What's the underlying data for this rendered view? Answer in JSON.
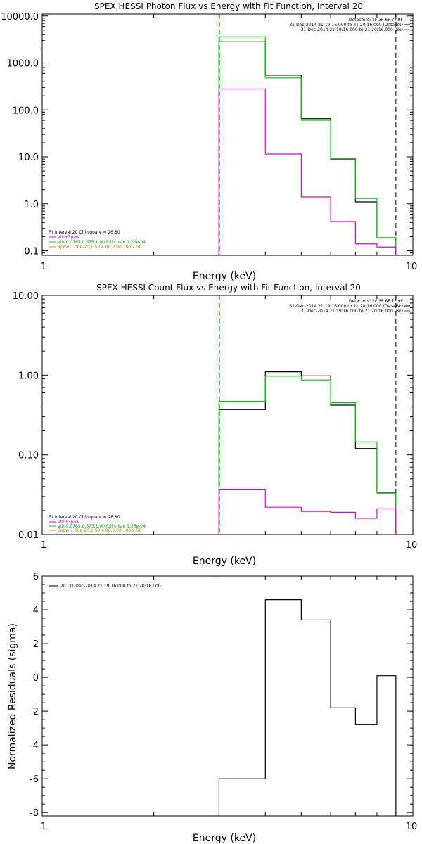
{
  "chart_data": [
    {
      "type": "line",
      "title": "SPEX HESSI Photon Flux vs Energy with Fit Function, Interval 20",
      "xlabel": "Energy (keV)",
      "ylabel": "",
      "x_scale": "log",
      "y_scale": "log",
      "xlim": [
        1,
        10
      ],
      "ylim": [
        0.08,
        11000
      ],
      "x_ticks": [
        {
          "v": 1,
          "label": "1"
        },
        {
          "v": 10,
          "label": "10"
        }
      ],
      "y_ticks": [
        {
          "v": 10000,
          "label": "10000.0"
        },
        {
          "v": 1000,
          "label": "1000.0"
        },
        {
          "v": 100,
          "label": "100.0"
        },
        {
          "v": 10,
          "label": "10.0"
        },
        {
          "v": 1,
          "label": "1.0"
        },
        {
          "v": 0.1,
          "label": "0.1"
        }
      ],
      "edges": [
        3.0,
        4.0,
        5.0,
        6.0,
        7.0,
        8.0,
        9.0
      ],
      "series": [
        {
          "key": "black",
          "color": "#000000",
          "values": [
            2900,
            550,
            65,
            9.0,
            1.1,
            0.19
          ]
        },
        {
          "key": "green",
          "color": "#00cc00",
          "values": [
            3600,
            480,
            60,
            9.2,
            1.3,
            0.19
          ]
        },
        {
          "key": "magenta",
          "color": "#dd00dd",
          "values": [
            280,
            11.5,
            1.4,
            0.42,
            0.14,
            0.12
          ]
        }
      ],
      "vlines": [
        {
          "x": 3.0,
          "style": "dotted",
          "color": "#000000"
        },
        {
          "x": 3.0,
          "style": "dashed",
          "color": "#00cc00"
        },
        {
          "x": 9.0,
          "style": "dashed",
          "color": "#000000"
        }
      ],
      "legend_top_right": [
        {
          "text": "Detectors: 1F 3F 6F 7F 9F",
          "color": "#000000"
        },
        {
          "text": "31-Dec-2014 21:19:16.000 to 21:20:16.000 (Data-Bk)",
          "color": "#000000",
          "swatch": "#000000"
        },
        {
          "text": "31-Dec-2014 21:19:16.000 to 21:20:16.000 (Bk)",
          "color": "#000000",
          "swatch": "#dd00dd"
        }
      ],
      "legend_bottom_left": [
        {
          "text": "Fit Interval 20   Chi-square = 26.80",
          "color": "#000000"
        },
        {
          "text": "vth+3pow",
          "color": "#dd00dd",
          "swatch": "#dd00dd"
        },
        {
          "text": "vth 0.0765,0.675,1.00  full chian 1.26e-04",
          "color": "#00cc00",
          "swatch": "#00cc00"
        },
        {
          "text": "3pow 1.00e-20,1.50,4.00,2.00,100,2.50",
          "color": "#cc9900",
          "swatch": "#cc9900"
        }
      ]
    },
    {
      "type": "line",
      "title": "SPEX HESSI Count Flux vs Energy with Fit Function, Interval 20",
      "xlabel": "Energy (keV)",
      "ylabel": "",
      "x_scale": "log",
      "y_scale": "log",
      "xlim": [
        1,
        10
      ],
      "ylim": [
        0.01,
        10
      ],
      "x_ticks": [
        {
          "v": 1,
          "label": "1"
        },
        {
          "v": 10,
          "label": "10"
        }
      ],
      "y_ticks": [
        {
          "v": 10,
          "label": "10.00"
        },
        {
          "v": 1,
          "label": "1.00"
        },
        {
          "v": 0.1,
          "label": "0.10"
        },
        {
          "v": 0.01,
          "label": "0.01"
        }
      ],
      "edges": [
        3.0,
        4.0,
        5.0,
        6.0,
        7.0,
        8.0,
        9.0
      ],
      "series": [
        {
          "key": "black",
          "color": "#000000",
          "values": [
            0.37,
            1.1,
            0.98,
            0.42,
            0.12,
            0.034
          ]
        },
        {
          "key": "green",
          "color": "#00cc00",
          "values": [
            0.47,
            0.97,
            0.87,
            0.45,
            0.145,
            0.033
          ]
        },
        {
          "key": "magenta",
          "color": "#dd00dd",
          "values": [
            0.037,
            0.022,
            0.0195,
            0.019,
            0.016,
            0.021
          ]
        }
      ],
      "vlines": [
        {
          "x": 3.0,
          "style": "dotted",
          "color": "#000000"
        },
        {
          "x": 3.0,
          "style": "dashed",
          "color": "#00cc00"
        },
        {
          "x": 9.0,
          "style": "dashed",
          "color": "#000000"
        }
      ],
      "legend_top_right": [
        {
          "text": "Detectors: 1F 3F 6F 7F 9F",
          "color": "#000000"
        },
        {
          "text": "31-Dec-2014 21:19:16.000 to 21:20:16.000 (Data-Bk)",
          "color": "#000000",
          "swatch": "#000000"
        },
        {
          "text": "31-Dec-2014 21:19:16.000 to 21:20:16.000 (Bk)",
          "color": "#000000",
          "swatch": "#dd00dd"
        }
      ],
      "legend_bottom_left": [
        {
          "text": "Fit Interval 20   Chi-square = 26.80",
          "color": "#000000"
        },
        {
          "text": "vth+3pow",
          "color": "#dd00dd",
          "swatch": "#dd00dd"
        },
        {
          "text": "vth 0.0765,0.675,1.00  full chian 1.26e-04",
          "color": "#00cc00",
          "swatch": "#00cc00"
        },
        {
          "text": "3pow 1.00e-20,1.50,4.00,2.00,100,2.50",
          "color": "#cc9900",
          "swatch": "#cc9900"
        }
      ]
    },
    {
      "type": "line",
      "title": "",
      "xlabel": "Energy (keV)",
      "ylabel": "Normalized Residuals (sigma)",
      "x_scale": "log",
      "y_scale": "linear",
      "xlim": [
        1,
        10
      ],
      "ylim": [
        -8.2,
        6
      ],
      "x_ticks": [
        {
          "v": 1,
          "label": "1"
        },
        {
          "v": 10,
          "label": "10"
        }
      ],
      "y_ticks": [
        {
          "v": 6,
          "label": "6"
        },
        {
          "v": 4,
          "label": "4"
        },
        {
          "v": 2,
          "label": "2"
        },
        {
          "v": 0,
          "label": "0"
        },
        {
          "v": -2,
          "label": "-2"
        },
        {
          "v": -4,
          "label": "-4"
        },
        {
          "v": -6,
          "label": "-6"
        },
        {
          "v": -8,
          "label": "-8"
        }
      ],
      "edges": [
        3.0,
        4.0,
        5.0,
        6.0,
        7.0,
        8.0,
        9.0
      ],
      "series": [
        {
          "key": "black",
          "color": "#000000",
          "values": [
            -6.0,
            4.6,
            3.4,
            -1.8,
            -2.8,
            0.1
          ]
        }
      ],
      "vlines": [],
      "legend_top_left": [
        {
          "text": "20. 31-Dec-2014 21:19:16.000 to 21:20:16.000",
          "color": "#000000",
          "swatch": "#000000"
        }
      ]
    }
  ]
}
